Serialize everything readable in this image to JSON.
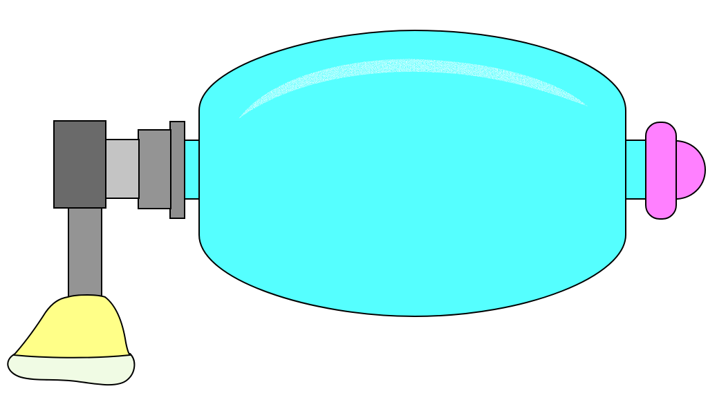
{
  "image": {
    "description_free": true
  },
  "colors": {
    "background": "#ffffff",
    "outline": "#000000",
    "bag": "#55ffff",
    "bag_sheen": "#ffffff",
    "dark_block": "#6a6a6a",
    "light_tube": "#c4c4c4",
    "mid_gray": "#949494",
    "collar_gray": "#8f8f8f",
    "valve_pink": "#ff80ff",
    "mask_cushion": "#ffff88",
    "mask_rim": "#f0fbe4"
  },
  "components": [
    {
      "name": "self-inflating-bag",
      "icon": "bag-shape"
    },
    {
      "name": "reservoir-valve",
      "icon": "pink-valve"
    },
    {
      "name": "patient-valve",
      "icon": "gray-connector"
    },
    {
      "name": "face-mask",
      "icon": "mask-shape"
    }
  ]
}
